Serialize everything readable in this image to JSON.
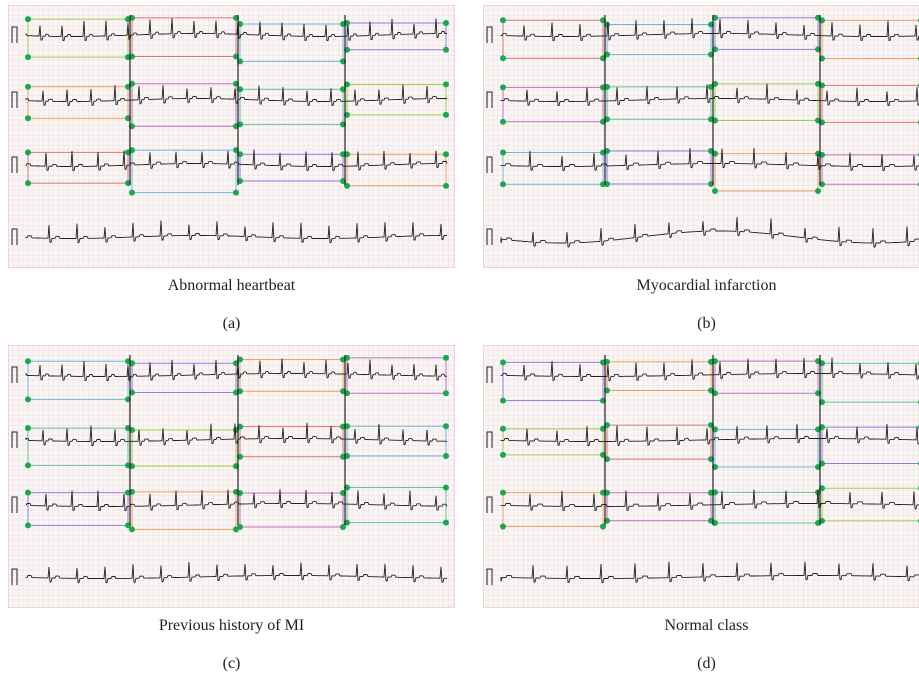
{
  "panels": [
    {
      "caption": "Abnormal heartbeat",
      "label": "(a)"
    },
    {
      "caption": "Myocardial infarction",
      "label": "(b)"
    },
    {
      "caption": "Previous history of MI",
      "label": "(c)"
    },
    {
      "caption": "Normal class",
      "label": "(d)"
    }
  ]
}
